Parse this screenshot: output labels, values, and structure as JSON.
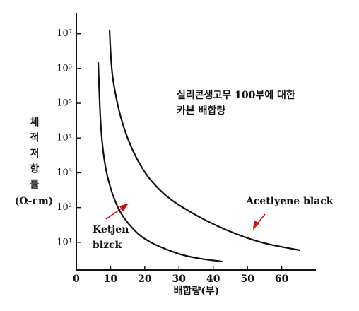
{
  "chart_data": {
    "type": "line",
    "annotation_lines": [
      "실리콘생고무 100부에 대한",
      "카본 배합량"
    ],
    "x_label": "배합량(부)",
    "y_label": "체적저항률",
    "y_unit": "(Ω-cm)",
    "xlim": [
      0,
      70
    ],
    "xticks": [
      0,
      10,
      20,
      30,
      40,
      50,
      60
    ],
    "ylim": [
      1.6,
      40000000
    ],
    "log_y": true,
    "yticks": [
      {
        "value": 10,
        "label": "10¹"
      },
      {
        "value": 100,
        "label": "10²"
      },
      {
        "value": 1000,
        "label": "10³"
      },
      {
        "value": 10000,
        "label": "10⁴"
      },
      {
        "value": 100000,
        "label": "10⁵"
      },
      {
        "value": 1000000,
        "label": "10⁶"
      },
      {
        "value": 10000000,
        "label": "10⁷"
      }
    ],
    "series": [
      {
        "label_lines": [
          "Ketjen",
          "blzck"
        ],
        "color": "#111111",
        "x": [
          6.4,
          7.2,
          8.7,
          11.8,
          15.9,
          21,
          29.3,
          35.5,
          42.7
        ],
        "y": [
          1500000,
          20000,
          1200,
          120,
          29,
          11,
          4.9,
          3.5,
          2.8
        ]
      },
      {
        "label_lines": [
          "Acetlyene black"
        ],
        "color": "#111111",
        "x": [
          9.7,
          10.7,
          13.9,
          19,
          25.2,
          33.4,
          43.7,
          54,
          65.4
        ],
        "y": [
          12600000,
          500000,
          20000,
          1500,
          270,
          74,
          23,
          10,
          5.9
        ]
      }
    ]
  }
}
